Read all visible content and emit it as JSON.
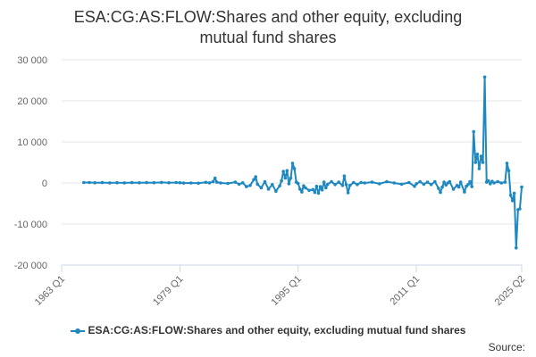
{
  "chart_data": {
    "type": "line",
    "title_lines": [
      "ESA:CG:AS:FLOW:Shares and other equity, excluding",
      "mutual fund shares"
    ],
    "ylim": [
      -20000,
      30000
    ],
    "y_ticks": [
      30000,
      20000,
      10000,
      0,
      -10000,
      -20000
    ],
    "y_tick_labels": [
      "30 000",
      "20 000",
      "10 000",
      "0",
      "-10 000",
      "-20 000"
    ],
    "xlim": [
      1963.0,
      2025.25
    ],
    "x_ticks": [
      1963.0,
      1979.0,
      1995.0,
      2011.0,
      2025.25
    ],
    "x_tick_labels": [
      "1963 Q1",
      "1979 Q1",
      "1995 Q1",
      "2011 Q1",
      "2025 Q2"
    ],
    "grid": "horizontal",
    "legend_position": "bottom",
    "series": [
      {
        "name": "ESA:CG:AS:FLOW:Shares and other equity, excluding mutual fund shares",
        "color": "#1f88c1",
        "points": [
          [
            1966.0,
            100
          ],
          [
            1966.75,
            100
          ],
          [
            1967.5,
            50
          ],
          [
            1968.5,
            80
          ],
          [
            1969.5,
            30
          ],
          [
            1970.5,
            60
          ],
          [
            1971.5,
            20
          ],
          [
            1972.5,
            80
          ],
          [
            1973.5,
            40
          ],
          [
            1974.5,
            90
          ],
          [
            1975.5,
            60
          ],
          [
            1976.5,
            120
          ],
          [
            1977.5,
            40
          ],
          [
            1978.5,
            100
          ],
          [
            1979.0,
            60
          ],
          [
            1979.5,
            -20
          ],
          [
            1980.5,
            10
          ],
          [
            1981.5,
            -60
          ],
          [
            1982.5,
            150
          ],
          [
            1983.0,
            20
          ],
          [
            1983.5,
            300
          ],
          [
            1983.75,
            1200
          ],
          [
            1984.0,
            200
          ],
          [
            1984.5,
            0
          ],
          [
            1985.5,
            -100
          ],
          [
            1986.5,
            200
          ],
          [
            1987.0,
            -300
          ],
          [
            1987.5,
            50
          ],
          [
            1988.0,
            -900
          ],
          [
            1988.5,
            -600
          ],
          [
            1989.0,
            800
          ],
          [
            1989.25,
            1500
          ],
          [
            1989.5,
            -300
          ],
          [
            1990.0,
            -1200
          ],
          [
            1990.5,
            300
          ],
          [
            1991.0,
            -1500
          ],
          [
            1991.5,
            -400
          ],
          [
            1992.0,
            -2000
          ],
          [
            1992.5,
            -700
          ],
          [
            1992.75,
            500
          ],
          [
            1993.0,
            2800
          ],
          [
            1993.25,
            1200
          ],
          [
            1993.5,
            3000
          ],
          [
            1993.75,
            -200
          ],
          [
            1994.0,
            1200
          ],
          [
            1994.25,
            4800
          ],
          [
            1994.5,
            3500
          ],
          [
            1994.75,
            200
          ],
          [
            1995.0,
            -100
          ],
          [
            1995.25,
            -1500
          ],
          [
            1995.5,
            -2200
          ],
          [
            1995.75,
            -700
          ],
          [
            1996.0,
            -1200
          ],
          [
            1996.5,
            -1800
          ],
          [
            1997.0,
            -1600
          ],
          [
            1997.25,
            -2300
          ],
          [
            1997.5,
            -800
          ],
          [
            1997.75,
            -2500
          ],
          [
            1998.0,
            -900
          ],
          [
            1998.25,
            -1700
          ],
          [
            1998.5,
            200
          ],
          [
            1998.75,
            -1200
          ],
          [
            1999.0,
            -300
          ],
          [
            1999.5,
            300
          ],
          [
            2000.0,
            -400
          ],
          [
            2000.5,
            200
          ],
          [
            2001.0,
            -600
          ],
          [
            2001.25,
            1700
          ],
          [
            2001.5,
            -400
          ],
          [
            2001.75,
            -2400
          ],
          [
            2002.0,
            -600
          ],
          [
            2002.5,
            100
          ],
          [
            2003.0,
            -400
          ],
          [
            2003.5,
            100
          ],
          [
            2004.0,
            0
          ],
          [
            2005.0,
            200
          ],
          [
            2006.0,
            -200
          ],
          [
            2007.0,
            300
          ],
          [
            2008.0,
            0
          ],
          [
            2009.0,
            -300
          ],
          [
            2010.0,
            100
          ],
          [
            2010.75,
            -800
          ],
          [
            2011.0,
            -200
          ],
          [
            2011.5,
            300
          ],
          [
            2012.0,
            -300
          ],
          [
            2012.5,
            200
          ],
          [
            2013.0,
            -400
          ],
          [
            2013.5,
            300
          ],
          [
            2014.0,
            -1300
          ],
          [
            2014.25,
            -2300
          ],
          [
            2014.5,
            -1000
          ],
          [
            2014.75,
            200
          ],
          [
            2015.0,
            -500
          ],
          [
            2015.25,
            0
          ],
          [
            2015.5,
            300
          ],
          [
            2016.0,
            -1500
          ],
          [
            2016.5,
            -600
          ],
          [
            2016.75,
            -1000
          ],
          [
            2017.0,
            200
          ],
          [
            2017.5,
            -2200
          ],
          [
            2017.75,
            -800
          ],
          [
            2018.0,
            -400
          ],
          [
            2018.25,
            300
          ],
          [
            2018.5,
            -900
          ],
          [
            2018.75,
            12500
          ],
          [
            2019.0,
            5000
          ],
          [
            2019.25,
            7000
          ],
          [
            2019.5,
            3500
          ],
          [
            2019.75,
            6500
          ],
          [
            2020.0,
            5000
          ],
          [
            2020.25,
            25800
          ],
          [
            2020.5,
            200
          ],
          [
            2020.75,
            500
          ],
          [
            2021.0,
            -200
          ],
          [
            2021.25,
            400
          ],
          [
            2021.5,
            0
          ],
          [
            2022.0,
            300
          ],
          [
            2022.5,
            0
          ],
          [
            2023.0,
            200
          ],
          [
            2023.25,
            4800
          ],
          [
            2023.5,
            3000
          ],
          [
            2023.75,
            -3000
          ],
          [
            2024.0,
            -4300
          ],
          [
            2024.25,
            -2500
          ],
          [
            2024.5,
            -15800
          ],
          [
            2024.75,
            -6500
          ],
          [
            2025.0,
            -6300
          ],
          [
            2025.25,
            -1000
          ]
        ]
      }
    ]
  },
  "legend": {
    "label": "ESA:CG:AS:FLOW:Shares and other equity, excluding mutual fund shares"
  },
  "source_label": "Source:"
}
